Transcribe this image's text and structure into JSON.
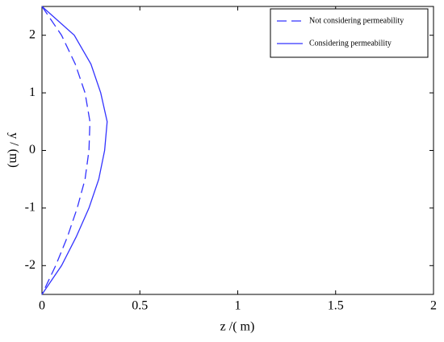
{
  "chart_data": {
    "type": "line",
    "x_label": "z /( m)",
    "y_label": "y / (m)",
    "xlim": [
      0,
      2
    ],
    "ylim": [
      -2.5,
      2.5
    ],
    "xticks": [
      0,
      0.5,
      1,
      1.5,
      2
    ],
    "yticks": [
      -2,
      -1,
      0,
      1,
      2
    ],
    "legend": "upper right",
    "series": [
      {
        "name": "Not considering permeability",
        "color": "#3333ff",
        "dash": true,
        "x": [
          0,
          0.1,
          0.17,
          0.22,
          0.245,
          0.24,
          0.22,
          0.18,
          0.13,
          0.07,
          0
        ],
        "values": [
          2.5,
          2,
          1.5,
          1,
          0.5,
          0,
          -0.5,
          -1,
          -1.5,
          -2,
          -2.5
        ]
      },
      {
        "name": "Considering permeability",
        "color": "#3333ff",
        "dash": false,
        "x": [
          0,
          0.165,
          0.25,
          0.3,
          0.333,
          0.32,
          0.29,
          0.24,
          0.175,
          0.1,
          0
        ],
        "values": [
          2.5,
          2,
          1.5,
          1,
          0.5,
          0,
          -0.5,
          -1,
          -1.5,
          -2,
          -2.5
        ]
      }
    ]
  }
}
